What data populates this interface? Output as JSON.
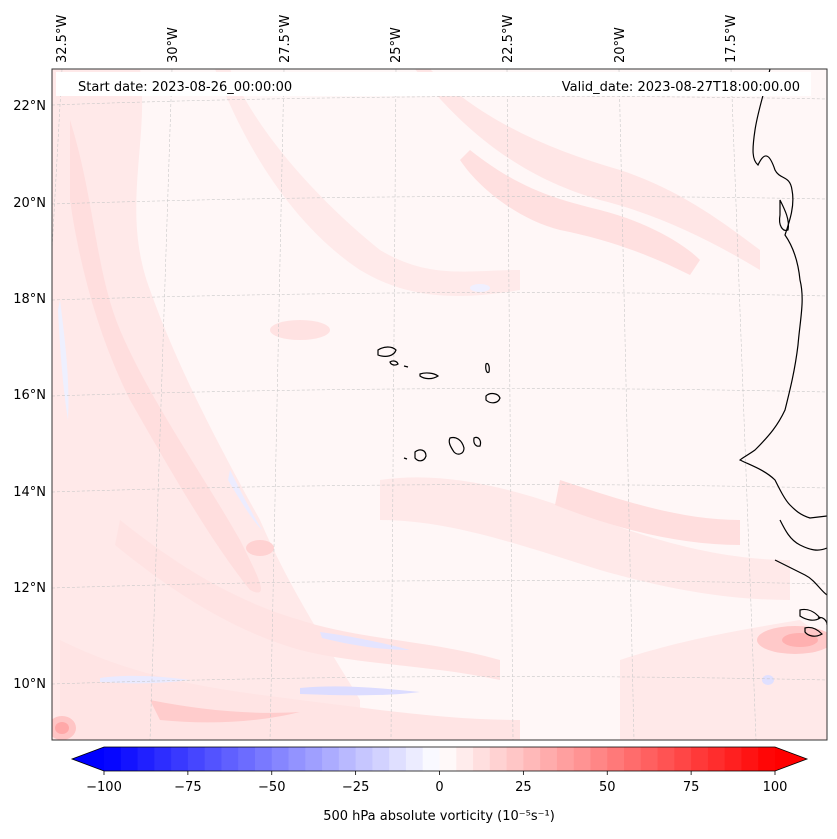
{
  "map": {
    "start_date_label": "Start date: 2023-08-26_00:00:00",
    "valid_date_label": "Valid_date: 2023-08-27T18:00:00.00",
    "lon_ticks": [
      "32.5°W",
      "30°W",
      "27.5°W",
      "25°W",
      "22.5°W",
      "20°W",
      "17.5°W"
    ],
    "lat_ticks": [
      "22°N",
      "20°N",
      "18°N",
      "16°N",
      "14°N",
      "12°N",
      "10°N"
    ],
    "gridlines": true,
    "coastline_color": "#000000"
  },
  "colorbar": {
    "label": "500 hPa absolute vorticity (10⁻⁵s⁻¹)",
    "ticks": [
      "−100",
      "−75",
      "−50",
      "−25",
      "0",
      "25",
      "50",
      "75",
      "100"
    ],
    "range": [
      -100,
      100
    ],
    "step": 5,
    "colormap": "bwr",
    "extend": "both",
    "low_color": "#0000ff",
    "mid_color": "#ffffff",
    "high_color": "#ff0000"
  }
}
